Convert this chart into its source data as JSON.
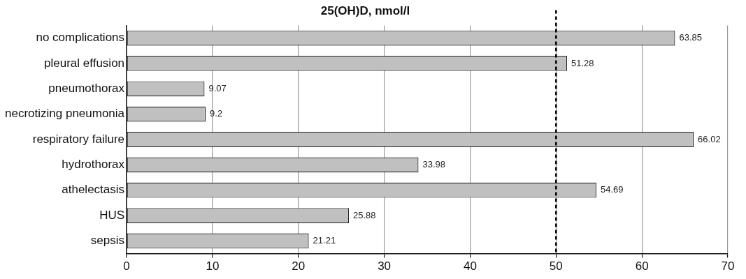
{
  "chart_data": {
    "type": "bar",
    "orientation": "horizontal",
    "title": "25(OH)D, nmol/l",
    "categories": [
      "no complications",
      "pleural effusion",
      "pneumothorax",
      "necrotizing pneumonia",
      "respiratory failure",
      "hydrothorax",
      "athelectasis",
      "HUS",
      "sepsis"
    ],
    "values": [
      63.85,
      51.28,
      9.07,
      9.2,
      66.02,
      33.98,
      54.69,
      25.88,
      21.21
    ],
    "color": "#c0c0c0",
    "xlim": [
      0,
      70
    ],
    "xticks": [
      0,
      10,
      20,
      30,
      40,
      50,
      60,
      70
    ],
    "grid": "x",
    "data_labels": true,
    "ref_lines": [
      {
        "axis": "x",
        "value": 50,
        "color": "#000000",
        "line_style": "dashed"
      }
    ]
  }
}
